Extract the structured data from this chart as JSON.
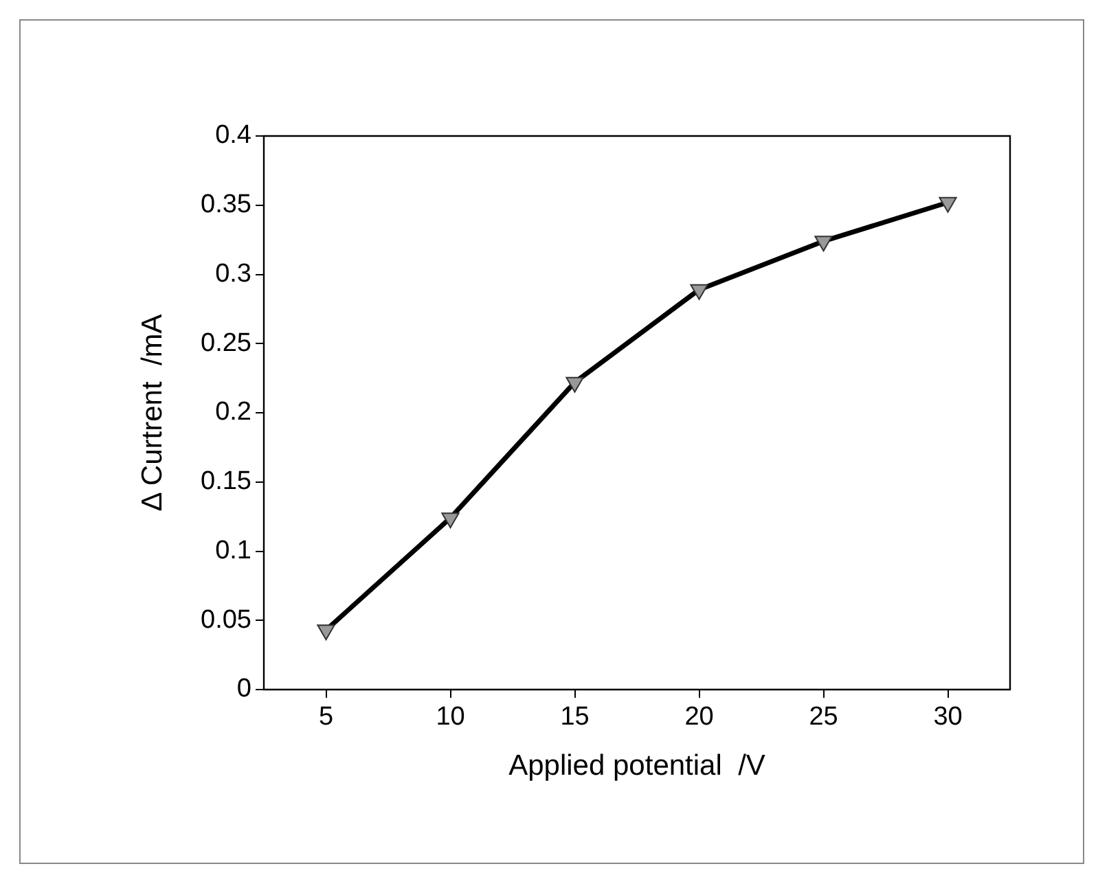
{
  "chart_data": {
    "type": "line",
    "xlabel": "Applied potential  /V",
    "ylabel": "Δ Curtrent  /mA",
    "x": [
      5,
      10,
      15,
      20,
      25,
      30
    ],
    "series": [
      {
        "color": "#000000",
        "values": [
          0.043,
          0.124,
          0.222,
          0.289,
          0.324,
          0.352
        ]
      }
    ],
    "xlim": [
      2.5,
      32.5
    ],
    "xticks": [
      5,
      10,
      15,
      20,
      25,
      30
    ],
    "ylim": [
      0,
      0.4
    ],
    "yticks": [
      0,
      0.05,
      0.1,
      0.15,
      0.2,
      0.25,
      0.3,
      0.35,
      0.4
    ],
    "grid": false,
    "legend": false,
    "marker": "triangle",
    "line_style": "solid"
  }
}
